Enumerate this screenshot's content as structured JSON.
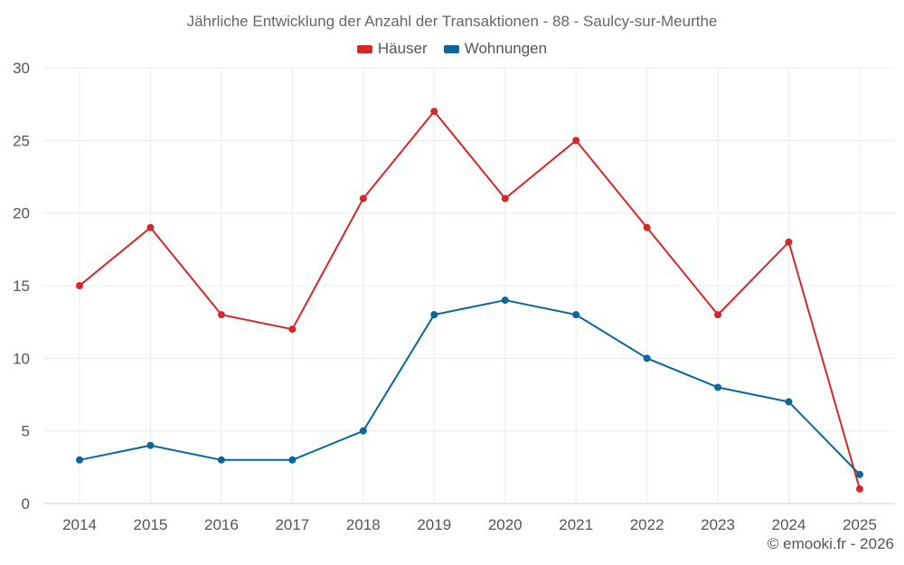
{
  "chart_data": {
    "type": "line",
    "title": "Jährliche Entwicklung der Anzahl der Transaktionen - 88 - Saulcy-sur-Meurthe",
    "xlabel": "",
    "ylabel": "",
    "categories": [
      "2014",
      "2015",
      "2016",
      "2017",
      "2018",
      "2019",
      "2020",
      "2021",
      "2022",
      "2023",
      "2024",
      "2025"
    ],
    "ylim": [
      0,
      30
    ],
    "yticks": [
      0,
      5,
      10,
      15,
      20,
      25,
      30
    ],
    "grid": true,
    "legend_position": "top-center",
    "series": [
      {
        "name": "Häuser",
        "color": "#d62728",
        "values": [
          15,
          19,
          13,
          12,
          21,
          27,
          21,
          25,
          19,
          13,
          18,
          1
        ]
      },
      {
        "name": "Wohnungen",
        "color": "#08679c",
        "values": [
          3,
          4,
          3,
          3,
          5,
          13,
          14,
          13,
          10,
          8,
          7,
          2
        ]
      }
    ]
  },
  "credit": "© emooki.fr - 2026"
}
